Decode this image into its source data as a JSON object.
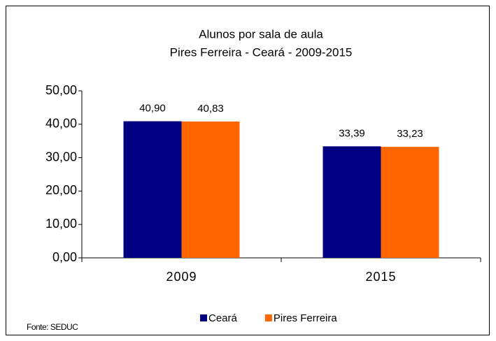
{
  "chart_data": {
    "type": "bar",
    "title": "Alunos por sala de aula",
    "subtitle": "Pires Ferreira - Ceará - 2009-2015",
    "categories": [
      "2009",
      "2015"
    ],
    "series": [
      {
        "name": "Ceará",
        "color": "#000080",
        "values": [
          40.9,
          33.39
        ],
        "value_labels": [
          "40,90",
          "33,39"
        ]
      },
      {
        "name": "Pires Ferreira",
        "color": "#ff6600",
        "values": [
          40.83,
          33.23
        ],
        "value_labels": [
          "40,83",
          "33,23"
        ]
      }
    ],
    "ylim": [
      0,
      50
    ],
    "yticks": [
      {
        "value": 0,
        "label": "0,00"
      },
      {
        "value": 10,
        "label": "10,00"
      },
      {
        "value": 20,
        "label": "20,00"
      },
      {
        "value": 30,
        "label": "30,00"
      },
      {
        "value": 40,
        "label": "40,00"
      },
      {
        "value": 50,
        "label": "50,00"
      }
    ],
    "grid": false,
    "legend": "bottom",
    "source": "Fonte: SEDUC"
  }
}
